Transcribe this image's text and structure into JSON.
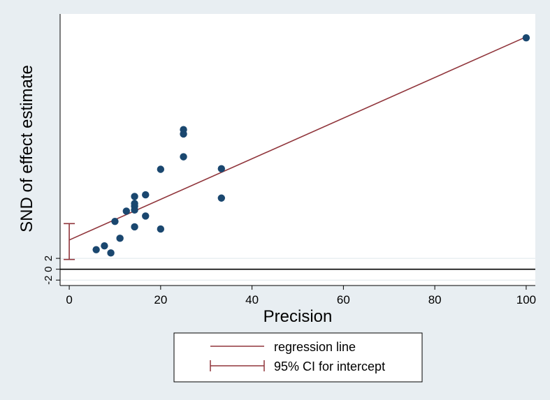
{
  "chart_data": {
    "type": "scatter",
    "title": "",
    "xlabel": "Precision",
    "ylabel": "SND of effect estimate",
    "xlim": [
      -2,
      102
    ],
    "ylim": [
      -3,
      47
    ],
    "xticks": [
      0,
      20,
      40,
      60,
      80,
      100
    ],
    "yticks": [
      -2,
      0,
      2
    ],
    "y_reference_line": 0,
    "points": {
      "name": "studies",
      "color": "#1a476f",
      "x": [
        5.9,
        7.7,
        9.1,
        10.0,
        11.1,
        12.5,
        14.3,
        14.3,
        14.3,
        14.3,
        14.3,
        16.7,
        16.7,
        20.0,
        20.0,
        25.0,
        25.0,
        25.0,
        33.3,
        33.3,
        100.0
      ],
      "y": [
        3.6,
        4.3,
        3.0,
        8.8,
        5.7,
        10.7,
        7.8,
        10.9,
        11.6,
        12.1,
        13.4,
        9.8,
        13.7,
        7.4,
        18.4,
        20.7,
        24.9,
        25.7,
        18.5,
        13.1,
        42.6
      ]
    },
    "regression_line": {
      "name": "regression line",
      "color": "#90353b",
      "intercept": 5.38,
      "slope": 0.374
    },
    "intercept_ci": {
      "name": "95% CI for intercept",
      "color": "#90353b",
      "x": 0,
      "lower": 1.8,
      "upper": 8.4
    },
    "legend": {
      "position": "bottom",
      "entries": [
        "regression line",
        "95% CI for intercept"
      ]
    }
  }
}
